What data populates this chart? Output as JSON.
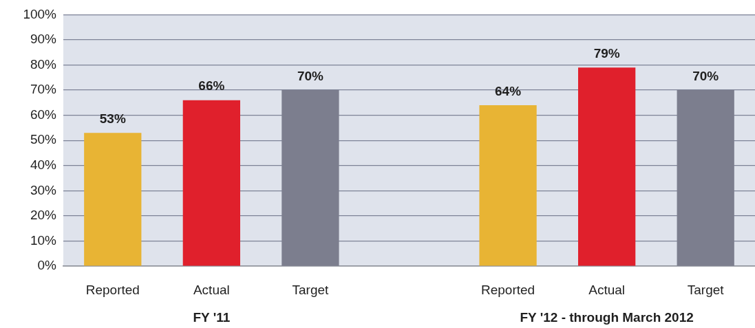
{
  "chart_data": {
    "type": "bar",
    "categories": [
      "Reported",
      "Actual",
      "Target",
      null,
      "Reported",
      "Actual",
      "Target"
    ],
    "values": [
      53,
      66,
      70,
      null,
      64,
      79,
      70
    ],
    "colors": [
      "#e8b434",
      "#e0202c",
      "#7c7e8e",
      "#7c7e8e",
      "#e8b434",
      "#e0202c",
      "#7c7e8e"
    ],
    "value_labels": [
      "53%",
      "66%",
      "70%",
      null,
      "64%",
      "79%",
      "70%"
    ],
    "ylim": [
      0,
      100
    ],
    "yticks": [
      {
        "value": 0,
        "label": "0%"
      },
      {
        "value": 10,
        "label": "10%"
      },
      {
        "value": 20,
        "label": "20%"
      },
      {
        "value": 30,
        "label": "30%"
      },
      {
        "value": 40,
        "label": "40%"
      },
      {
        "value": 50,
        "label": "50%"
      },
      {
        "value": 60,
        "label": "60%"
      },
      {
        "value": 70,
        "label": "70%"
      },
      {
        "value": 80,
        "label": "80%"
      },
      {
        "value": 90,
        "label": "90%"
      },
      {
        "value": 100,
        "label": "100%"
      }
    ],
    "annotations": [
      "FY '11",
      "FY '12 - through March 2012"
    ],
    "grid": "y",
    "legend": false
  }
}
